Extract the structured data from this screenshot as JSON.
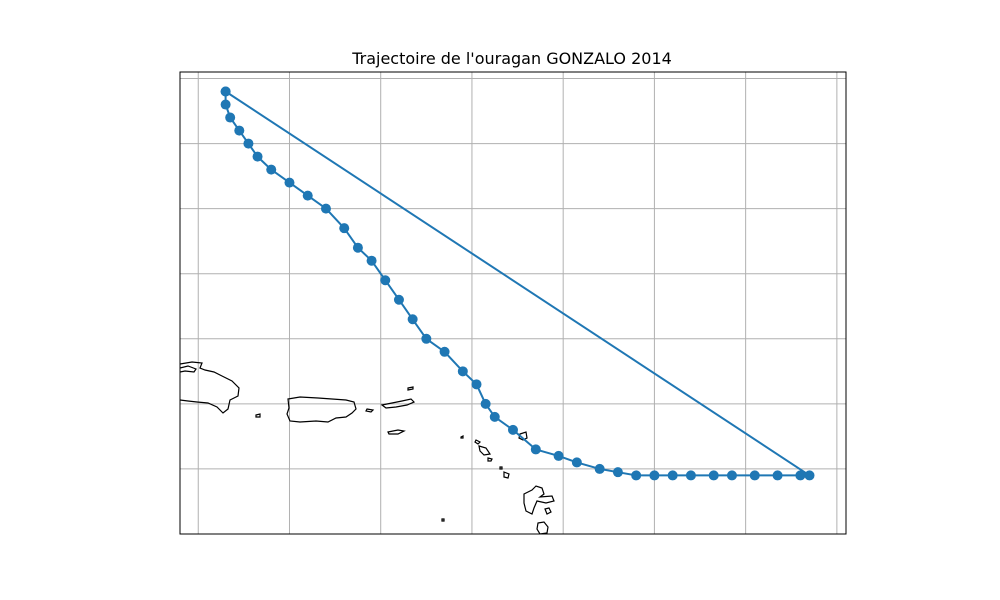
{
  "chart_data": {
    "type": "line",
    "title": "Trajectoire de l'ouragan GONZALO 2014",
    "xlabel": "",
    "ylabel": "",
    "xlim": [
      -67.4,
      -52.8
    ],
    "ylim": [
      16.0,
      23.1
    ],
    "grid": true,
    "series": [
      {
        "color": "#1f77b4",
        "marker": "circle",
        "x": [
          -66.4,
          -66.4,
          -66.3,
          -66.1,
          -65.9,
          -65.7,
          -65.4,
          -65.0,
          -64.6,
          -64.2,
          -63.8,
          -63.5,
          -63.2,
          -62.9,
          -62.6,
          -62.3,
          -62.0,
          -61.6,
          -61.2,
          -60.9,
          -60.7,
          -60.5,
          -60.1,
          -59.6,
          -59.1,
          -58.7,
          -58.2,
          -57.8,
          -57.4,
          -57.0,
          -56.6,
          -56.2,
          -55.7,
          -55.3,
          -54.8,
          -54.3,
          -53.8,
          -53.6,
          -66.4
        ],
        "y": [
          22.8,
          22.6,
          22.4,
          22.2,
          22.0,
          21.8,
          21.6,
          21.4,
          21.2,
          21.0,
          20.7,
          20.4,
          20.2,
          19.9,
          19.6,
          19.3,
          19.0,
          18.8,
          18.5,
          18.3,
          18.0,
          17.8,
          17.6,
          17.3,
          17.2,
          17.1,
          17.0,
          16.95,
          16.9,
          16.9,
          16.9,
          16.9,
          16.9,
          16.9,
          16.9,
          16.9,
          16.9,
          16.9,
          22.8
        ]
      }
    ]
  },
  "map": {
    "land_color": "#000000"
  },
  "style": {
    "grid_color": "#b0b0b0",
    "line_color": "#1f77b4"
  }
}
